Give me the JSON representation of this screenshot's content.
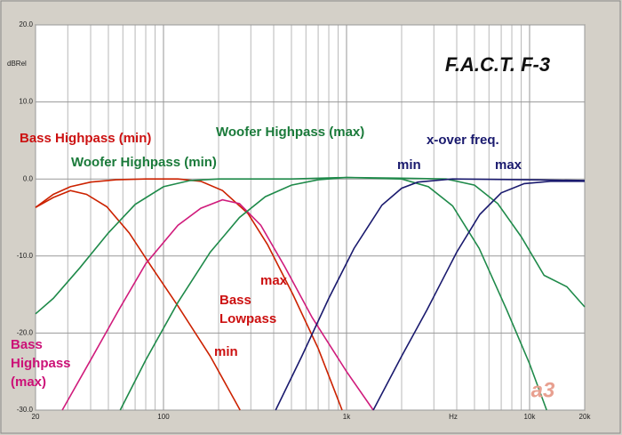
{
  "chart_data": {
    "type": "line",
    "title": "F.A.C.T. F-3",
    "logo": "a3",
    "x_unit": "Hz",
    "y_unit": "dBRel",
    "xscale": "log",
    "grid": true,
    "xlim": [
      20,
      20000
    ],
    "ylim": [
      -30,
      20
    ],
    "xticks": [
      20,
      100,
      {
        "value": 1000,
        "label": "1k"
      },
      {
        "value": 10000,
        "label": "10k"
      },
      {
        "value": 20000,
        "label": "20k"
      }
    ],
    "yticks": [
      {
        "value": -30,
        "label": "-30.0"
      },
      {
        "value": -20,
        "label": "-20.0"
      },
      {
        "value": -10,
        "label": "-10.0"
      },
      {
        "value": 0,
        "label": "0.0"
      },
      {
        "value": 10,
        "label": "10.0"
      },
      {
        "value": 20,
        "label": "20.0"
      }
    ],
    "series": [
      {
        "color": "#cc2200",
        "x": [
          20,
          25,
          31,
          38,
          49,
          65,
          86,
          120,
          180,
          262
        ],
        "values": [
          -3.7,
          -2.4,
          -1.5,
          -2.0,
          -3.6,
          -7,
          -11.4,
          -16.5,
          -23,
          -30
        ]
      },
      {
        "color": "#cc2200",
        "x": [
          20,
          25,
          31,
          40,
          55,
          80,
          120,
          160,
          210,
          290,
          370,
          510,
          700,
          946
        ],
        "values": [
          -3.7,
          -2.0,
          -1.0,
          -0.4,
          -0.1,
          0,
          0,
          -0.3,
          -1.5,
          -4.5,
          -8.5,
          -15,
          -22,
          -30
        ]
      },
      {
        "color": "#d01c7c",
        "x": [
          28,
          40,
          57,
          80,
          120,
          160,
          210,
          260,
          340,
          460,
          650,
          1000,
          1400
        ],
        "values": [
          -30,
          -23.5,
          -17,
          -11,
          -6,
          -3.8,
          -2.7,
          -3.2,
          -6,
          -11.4,
          -18,
          -25,
          -30
        ]
      },
      {
        "color": "#1f8a4a",
        "x": [
          20,
          25,
          35,
          50,
          70,
          100,
          140,
          200,
          500,
          1000,
          2000,
          2800,
          3800,
          5300,
          7500,
          10000,
          12400
        ],
        "values": [
          -17.5,
          -15.5,
          -11.5,
          -7,
          -3.3,
          -1.0,
          -0.2,
          0,
          0,
          0.2,
          0,
          -1,
          -3.5,
          -9,
          -17,
          -24,
          -30
        ]
      },
      {
        "color": "#1f8a4a",
        "x": [
          58,
          80,
          120,
          180,
          260,
          360,
          500,
          700,
          1000,
          2000,
          3500,
          5000,
          6700,
          9000,
          12000,
          16000,
          20000
        ],
        "values": [
          -30,
          -23.5,
          -16,
          -9.5,
          -5,
          -2.3,
          -0.8,
          -0.1,
          0.2,
          0.1,
          0,
          -0.8,
          -3.2,
          -7.5,
          -12.5,
          -14,
          -16.6
        ]
      },
      {
        "color": "#1a1a6e",
        "x": [
          410,
          570,
          800,
          1100,
          1560,
          2000,
          2450,
          3800,
          10000,
          20000
        ],
        "values": [
          -30,
          -23,
          -15.5,
          -9,
          -3.4,
          -1.2,
          -0.4,
          0,
          -0.1,
          -0.2
        ]
      },
      {
        "color": "#1a1a6e",
        "x": [
          1400,
          2000,
          2750,
          4000,
          5350,
          7000,
          9350,
          13000,
          20000
        ],
        "values": [
          -30,
          -23,
          -17,
          -9.5,
          -4.6,
          -1.8,
          -0.6,
          -0.3,
          -0.3
        ]
      }
    ],
    "annotations": [
      {
        "lines": [
          "Bass Highpass (min)"
        ],
        "color": "#cc1111"
      },
      {
        "lines": [
          "Woofer Highpass (min)"
        ],
        "color": "#1a7a3a"
      },
      {
        "lines": [
          "Woofer Highpass (max)"
        ],
        "color": "#1a7a3a"
      },
      {
        "lines": [
          "x-over freq."
        ],
        "color": "#1a1a6e"
      },
      {
        "lines": [
          "min"
        ],
        "color": "#1a1a6e"
      },
      {
        "lines": [
          "max"
        ],
        "color": "#1a1a6e"
      },
      {
        "lines": [
          "max"
        ],
        "color": "#cc1111"
      },
      {
        "lines": [
          "Bass",
          "Lowpass"
        ],
        "color": "#cc1111"
      },
      {
        "lines": [
          "min"
        ],
        "color": "#cc1111"
      },
      {
        "lines": [
          "Bass",
          "Highpass",
          "(max)"
        ],
        "color": "#cc1177"
      }
    ]
  }
}
